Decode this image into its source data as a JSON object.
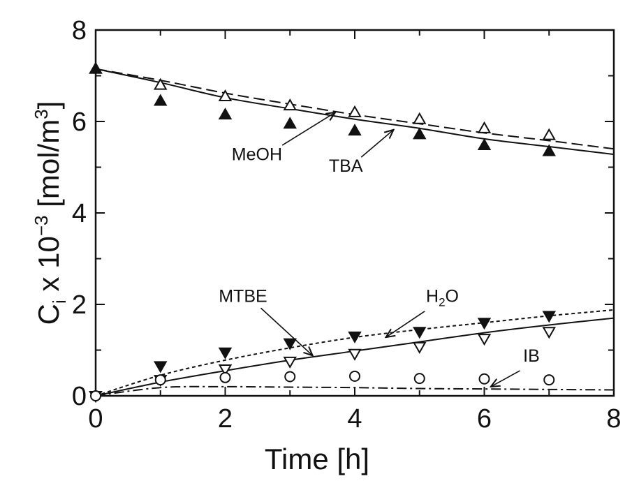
{
  "chart_data": {
    "type": "scatter",
    "title": "",
    "xlabel": "Time [h]",
    "ylabel_parts": {
      "base": "C",
      "sub": "i",
      "mid": " x 10",
      "sup": "−3",
      "unit": " [mol/m",
      "unit_sup": "3",
      "close": "]"
    },
    "xlim": [
      0,
      8
    ],
    "ylim": [
      0,
      8
    ],
    "xticks": [
      "0",
      "2",
      "4",
      "6",
      "8"
    ],
    "yticks": [
      "0",
      "2",
      "4",
      "6",
      "8"
    ],
    "grid": false,
    "legend": "none",
    "series": [
      {
        "name": "MeOH",
        "marker": "open-triangle-up",
        "x": [
          0,
          1,
          2,
          3,
          4,
          5,
          6,
          7
        ],
        "y": [
          7.15,
          6.8,
          6.55,
          6.35,
          6.2,
          6.05,
          5.85,
          5.7
        ],
        "fit": {
          "style": "dashed",
          "x": [
            0,
            1,
            2,
            3,
            4,
            5,
            6,
            7,
            8
          ],
          "y": [
            7.15,
            6.9,
            6.62,
            6.38,
            6.15,
            5.95,
            5.75,
            5.58,
            5.4
          ]
        }
      },
      {
        "name": "TBA",
        "marker": "filled-triangle-up",
        "x": [
          0,
          1,
          2,
          3,
          4,
          5,
          6,
          7
        ],
        "y": [
          7.15,
          6.45,
          6.15,
          5.95,
          5.8,
          5.72,
          5.48,
          5.35
        ],
        "fit": {
          "style": "solid",
          "x": [
            0,
            1,
            2,
            3,
            4,
            5,
            6,
            7,
            8
          ],
          "y": [
            7.15,
            6.85,
            6.52,
            6.28,
            6.05,
            5.85,
            5.62,
            5.45,
            5.28
          ]
        }
      },
      {
        "name": "H₂O",
        "marker": "filled-triangle-down",
        "x": [
          0,
          1,
          2,
          3,
          4,
          5,
          6,
          7
        ],
        "y": [
          0,
          0.65,
          0.95,
          1.15,
          1.3,
          1.4,
          1.6,
          1.75
        ],
        "fit": {
          "style": "dotted",
          "x": [
            0,
            1,
            2,
            3,
            4,
            5,
            6,
            7,
            8
          ],
          "y": [
            0,
            0.45,
            0.78,
            1.05,
            1.28,
            1.45,
            1.6,
            1.75,
            1.88
          ]
        }
      },
      {
        "name": "MTBE",
        "marker": "open-triangle-down",
        "x": [
          0,
          1,
          2,
          3,
          4,
          5,
          6,
          7
        ],
        "y": [
          0,
          0.35,
          0.58,
          0.75,
          0.92,
          1.07,
          1.25,
          1.4
        ],
        "fit": {
          "style": "solid",
          "x": [
            0,
            1,
            2,
            3,
            4,
            5,
            6,
            7,
            8
          ],
          "y": [
            0,
            0.3,
            0.55,
            0.78,
            0.98,
            1.18,
            1.38,
            1.55,
            1.7
          ]
        }
      },
      {
        "name": "IB",
        "marker": "open-circle",
        "x": [
          0,
          1,
          2,
          3,
          4,
          5,
          6,
          7
        ],
        "y": [
          0,
          0.35,
          0.4,
          0.42,
          0.43,
          0.38,
          0.37,
          0.35
        ],
        "fit": {
          "style": "dashdot",
          "x": [
            0,
            1,
            2,
            3,
            4,
            5,
            6,
            7,
            8
          ],
          "y": [
            0,
            0.18,
            0.2,
            0.19,
            0.18,
            0.16,
            0.15,
            0.14,
            0.13
          ]
        }
      }
    ],
    "annotations": [
      {
        "label": "MeOH",
        "sub": "",
        "tail": "",
        "text_at": [
          2.1,
          5.15
        ],
        "arrow_from": [
          2.88,
          5.48
        ],
        "arrow_to": [
          3.7,
          6.2
        ]
      },
      {
        "label": "TBA",
        "sub": "",
        "tail": "",
        "text_at": [
          3.6,
          4.9
        ],
        "arrow_from": [
          4.1,
          5.22
        ],
        "arrow_to": [
          4.6,
          5.82
        ]
      },
      {
        "label": "MTBE",
        "sub": "",
        "tail": "",
        "text_at": [
          1.9,
          2.05
        ],
        "arrow_from": [
          2.55,
          1.92
        ],
        "arrow_to": [
          3.35,
          0.88
        ]
      },
      {
        "label": "H",
        "sub": "2",
        "tail": "O",
        "text_at": [
          5.1,
          2.05
        ],
        "arrow_from": [
          5.08,
          1.85
        ],
        "arrow_to": [
          4.48,
          1.28
        ]
      },
      {
        "label": "IB",
        "sub": "",
        "tail": "",
        "text_at": [
          6.6,
          0.75
        ],
        "arrow_from": [
          6.55,
          0.55
        ],
        "arrow_to": [
          6.1,
          0.2
        ]
      }
    ]
  }
}
